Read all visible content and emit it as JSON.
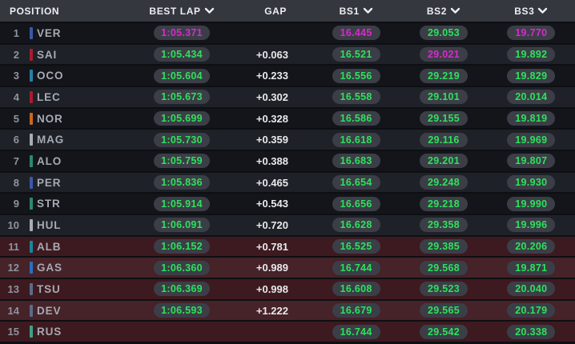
{
  "table": {
    "columns": {
      "position": "POSITION",
      "best_lap": "BEST LAP",
      "gap": "GAP",
      "bs1": "BS1",
      "bs2": "BS2",
      "bs3": "BS3"
    },
    "rows": [
      {
        "position": "1",
        "driver": "VER",
        "team_color": "#3b59a8",
        "zone": "safe",
        "best_lap": {
          "value": "1:05.371",
          "type": "session"
        },
        "gap": "",
        "bs1": {
          "value": "16.445",
          "type": "session"
        },
        "bs2": {
          "value": "29.053",
          "type": "personal"
        },
        "bs3": {
          "value": "19.770",
          "type": "session"
        }
      },
      {
        "position": "2",
        "driver": "SAI",
        "team_color": "#a81c30",
        "zone": "safe",
        "best_lap": {
          "value": "1:05.434",
          "type": "personal"
        },
        "gap": "+0.063",
        "bs1": {
          "value": "16.521",
          "type": "personal"
        },
        "bs2": {
          "value": "29.021",
          "type": "session"
        },
        "bs3": {
          "value": "19.892",
          "type": "personal"
        }
      },
      {
        "position": "3",
        "driver": "OCO",
        "team_color": "#2780a8",
        "zone": "safe",
        "best_lap": {
          "value": "1:05.604",
          "type": "personal"
        },
        "gap": "+0.233",
        "bs1": {
          "value": "16.556",
          "type": "personal"
        },
        "bs2": {
          "value": "29.219",
          "type": "personal"
        },
        "bs3": {
          "value": "19.829",
          "type": "personal"
        }
      },
      {
        "position": "4",
        "driver": "LEC",
        "team_color": "#a81c30",
        "zone": "safe",
        "best_lap": {
          "value": "1:05.673",
          "type": "personal"
        },
        "gap": "+0.302",
        "bs1": {
          "value": "16.558",
          "type": "personal"
        },
        "bs2": {
          "value": "29.101",
          "type": "personal"
        },
        "bs3": {
          "value": "20.014",
          "type": "personal"
        }
      },
      {
        "position": "5",
        "driver": "NOR",
        "team_color": "#c8681c",
        "zone": "safe",
        "best_lap": {
          "value": "1:05.699",
          "type": "personal"
        },
        "gap": "+0.328",
        "bs1": {
          "value": "16.586",
          "type": "personal"
        },
        "bs2": {
          "value": "29.155",
          "type": "personal"
        },
        "bs3": {
          "value": "19.819",
          "type": "personal"
        }
      },
      {
        "position": "6",
        "driver": "MAG",
        "team_color": "#a9adb2",
        "zone": "safe",
        "best_lap": {
          "value": "1:05.730",
          "type": "personal"
        },
        "gap": "+0.359",
        "bs1": {
          "value": "16.618",
          "type": "personal"
        },
        "bs2": {
          "value": "29.116",
          "type": "personal"
        },
        "bs3": {
          "value": "19.969",
          "type": "personal"
        }
      },
      {
        "position": "7",
        "driver": "ALO",
        "team_color": "#2c8a6e",
        "zone": "safe",
        "best_lap": {
          "value": "1:05.759",
          "type": "personal"
        },
        "gap": "+0.388",
        "bs1": {
          "value": "16.683",
          "type": "personal"
        },
        "bs2": {
          "value": "29.201",
          "type": "personal"
        },
        "bs3": {
          "value": "19.807",
          "type": "personal"
        }
      },
      {
        "position": "8",
        "driver": "PER",
        "team_color": "#3b59a8",
        "zone": "safe",
        "best_lap": {
          "value": "1:05.836",
          "type": "personal"
        },
        "gap": "+0.465",
        "bs1": {
          "value": "16.654",
          "type": "personal"
        },
        "bs2": {
          "value": "29.248",
          "type": "personal"
        },
        "bs3": {
          "value": "19.930",
          "type": "personal"
        }
      },
      {
        "position": "9",
        "driver": "STR",
        "team_color": "#2c8a6e",
        "zone": "safe",
        "best_lap": {
          "value": "1:05.914",
          "type": "personal"
        },
        "gap": "+0.543",
        "bs1": {
          "value": "16.656",
          "type": "personal"
        },
        "bs2": {
          "value": "29.218",
          "type": "personal"
        },
        "bs3": {
          "value": "19.990",
          "type": "personal"
        }
      },
      {
        "position": "10",
        "driver": "HUL",
        "team_color": "#a9adb2",
        "zone": "safe",
        "best_lap": {
          "value": "1:06.091",
          "type": "personal"
        },
        "gap": "+0.720",
        "bs1": {
          "value": "16.628",
          "type": "personal"
        },
        "bs2": {
          "value": "29.358",
          "type": "personal"
        },
        "bs3": {
          "value": "19.996",
          "type": "personal"
        }
      },
      {
        "position": "11",
        "driver": "ALB",
        "team_color": "#19879c",
        "zone": "elimination",
        "best_lap": {
          "value": "1:06.152",
          "type": "personal"
        },
        "gap": "+0.781",
        "bs1": {
          "value": "16.525",
          "type": "personal"
        },
        "bs2": {
          "value": "29.385",
          "type": "personal"
        },
        "bs3": {
          "value": "20.206",
          "type": "personal"
        }
      },
      {
        "position": "12",
        "driver": "GAS",
        "team_color": "#2a6fc0",
        "zone": "elimination",
        "best_lap": {
          "value": "1:06.360",
          "type": "personal"
        },
        "gap": "+0.989",
        "bs1": {
          "value": "16.744",
          "type": "personal"
        },
        "bs2": {
          "value": "29.568",
          "type": "personal"
        },
        "bs3": {
          "value": "19.871",
          "type": "personal"
        }
      },
      {
        "position": "13",
        "driver": "TSU",
        "team_color": "#5b6b85",
        "zone": "elimination",
        "best_lap": {
          "value": "1:06.369",
          "type": "personal"
        },
        "gap": "+0.998",
        "bs1": {
          "value": "16.608",
          "type": "personal"
        },
        "bs2": {
          "value": "29.523",
          "type": "personal"
        },
        "bs3": {
          "value": "20.040",
          "type": "personal"
        }
      },
      {
        "position": "14",
        "driver": "DEV",
        "team_color": "#5b6b85",
        "zone": "elimination",
        "best_lap": {
          "value": "1:06.593",
          "type": "personal"
        },
        "gap": "+1.222",
        "bs1": {
          "value": "16.679",
          "type": "personal"
        },
        "bs2": {
          "value": "29.565",
          "type": "personal"
        },
        "bs3": {
          "value": "20.179",
          "type": "personal"
        }
      },
      {
        "position": "15",
        "driver": "RUS",
        "team_color": "#3fa08a",
        "zone": "elimination",
        "best_lap": null,
        "gap": "",
        "bs1": {
          "value": "16.744",
          "type": "personal"
        },
        "bs2": {
          "value": "29.542",
          "type": "personal"
        },
        "bs3": {
          "value": "20.338",
          "type": "personal"
        }
      }
    ]
  },
  "colors": {
    "session_best": "#d929ce",
    "personal_best": "#2de25b",
    "pill_bg": "#3b3e46",
    "header_bg": "#34373e",
    "row_dark": "#14151b",
    "row_light": "#1e2127",
    "elimination_row_dark": "#3d1a20",
    "elimination_row_light": "#462229"
  }
}
